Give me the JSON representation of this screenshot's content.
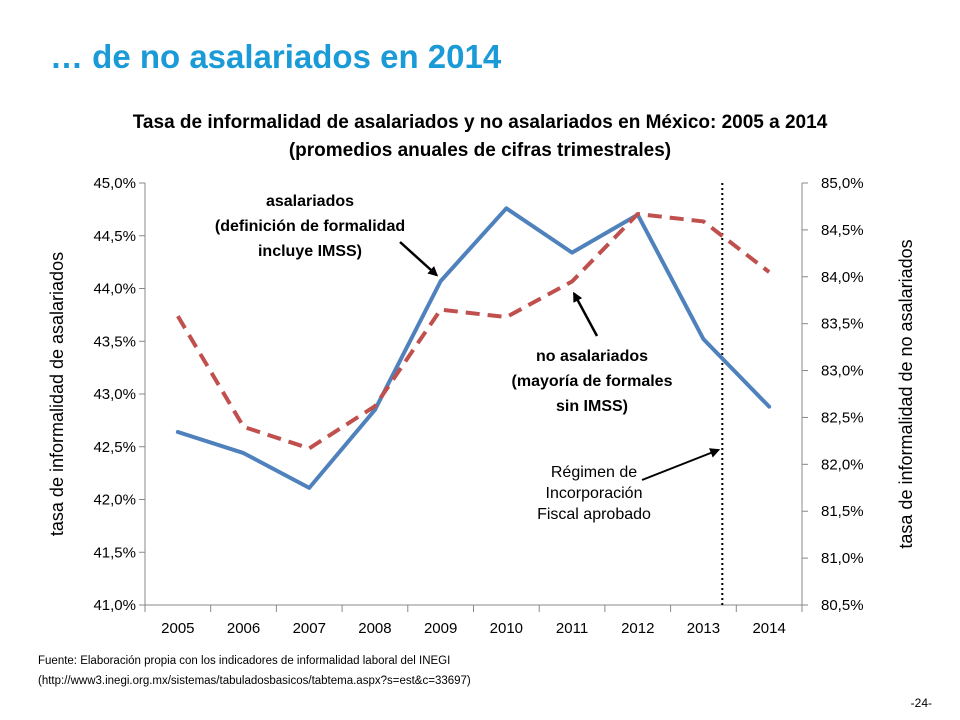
{
  "slide": {
    "title": "… de no asalariados en 2014",
    "page_number": "-24-"
  },
  "source": {
    "line1": "Fuente: Elaboración  propia con los indicadores  de informalidad laboral del INEGI",
    "line2": "(http://www3.inegi.org.mx/sistemas/tabuladosbasicos/tabtema.aspx?s=est&c=33697)"
  },
  "chart_data": {
    "type": "line",
    "title_lines": [
      "Tasa de informalidad de asalariados y no asalariados en México: 2005 a 2014",
      "(promedios anuales de cifras trimestrales)"
    ],
    "categories": [
      "2005",
      "2006",
      "2007",
      "2008",
      "2009",
      "2010",
      "2011",
      "2012",
      "2013",
      "2014"
    ],
    "y_left": {
      "label": "tasa de informalidad de asalariados",
      "range": [
        41.0,
        45.0
      ],
      "ticks": [
        "41,0%",
        "41,5%",
        "42,0%",
        "42,5%",
        "43,0%",
        "43,5%",
        "44,0%",
        "44,5%",
        "45,0%"
      ]
    },
    "y_right": {
      "label": "tasa de informalidad de no asalariados",
      "range": [
        80.5,
        85.0
      ],
      "ticks": [
        "80,5%",
        "81,0%",
        "81,5%",
        "82,0%",
        "82,5%",
        "83,0%",
        "83,5%",
        "84,0%",
        "84,5%",
        "85,0%"
      ]
    },
    "series": [
      {
        "name": "asalariados",
        "axis": "left",
        "color": "#4f81bd",
        "style": "solid",
        "values": [
          42.64,
          42.44,
          42.11,
          42.85,
          44.07,
          44.76,
          44.34,
          44.7,
          43.52,
          42.88
        ]
      },
      {
        "name": "no asalariados",
        "axis": "right",
        "color": "#c0504d",
        "style": "dashed",
        "values": [
          83.58,
          82.4,
          82.17,
          82.62,
          83.65,
          83.57,
          83.95,
          84.67,
          84.59,
          84.05
        ]
      }
    ],
    "annotations": {
      "asalariados": [
        "asalariados",
        "(definición de formalidad",
        "incluye IMSS)"
      ],
      "no_asalariados": [
        "no asalariados",
        "(mayoría de formales",
        "sin IMSS)"
      ],
      "rif": [
        "Régimen de",
        "Incorporación",
        "Fiscal aprobado"
      ]
    },
    "marker_line_position": 2013.5
  }
}
